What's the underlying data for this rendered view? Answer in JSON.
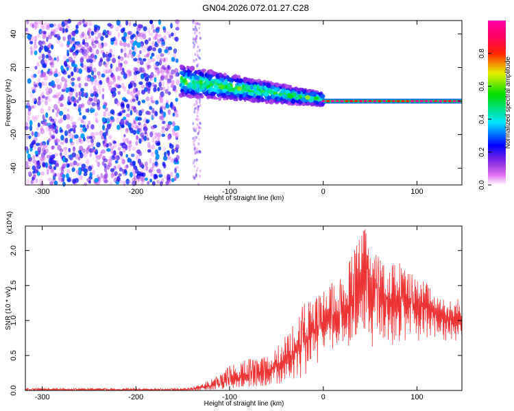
{
  "figure": {
    "title": "GN04.2026.072.01.27.C28"
  },
  "chart_data": [
    {
      "type": "heatmap",
      "title": "GN04.2026.072.01.27.C28",
      "xlabel": "Height of straight line (km)",
      "ylabel": "Frequency (Hz)",
      "xlim": [
        -318,
        148
      ],
      "ylim": [
        -50,
        48
      ],
      "xticks": [
        -300,
        -200,
        -100,
        0,
        100
      ],
      "xtick_labels": [
        "-300",
        "-200",
        "-100",
        "0",
        "100"
      ],
      "yticks": [
        -40,
        -20,
        0,
        20,
        40
      ],
      "ytick_labels": [
        "-40",
        "-20",
        "0",
        "20",
        "40"
      ],
      "colorbar": {
        "label": "Normalized spectral amplitude",
        "range": [
          0,
          1
        ],
        "ticks": [
          0.0,
          0.2,
          0.4,
          0.6,
          0.8
        ],
        "tick_labels": [
          "0.0",
          "0.2",
          "0.4",
          "0.6",
          "0.8"
        ],
        "colormap": "rainbow (white-magenta-blue-cyan-green-yellow-red-magenta)"
      },
      "features": [
        {
          "name": "noise-region",
          "x_range": [
            -318,
            -155
          ],
          "freq_range": [
            -50,
            48
          ],
          "amplitude": [
            0.0,
            0.3
          ]
        },
        {
          "name": "isolated-column",
          "x_center": -135,
          "freq_range": [
            -50,
            48
          ],
          "amplitude": [
            0.0,
            0.2
          ]
        },
        {
          "name": "descending-band",
          "x_range": [
            -152,
            0
          ],
          "freq_start": 12,
          "freq_end": 1,
          "amplitude": [
            0.1,
            0.6
          ]
        },
        {
          "name": "steady-line",
          "x_range": [
            0,
            148
          ],
          "freq": 0,
          "amplitude": [
            0.8,
            1.0
          ]
        }
      ]
    },
    {
      "type": "line",
      "title": "",
      "xlabel": "Height of straight line (km)",
      "ylabel": "SNR (10 * v/v)",
      "y_multiplier": "(x10^4)",
      "xlim": [
        -318,
        148
      ],
      "ylim": [
        0,
        2.35
      ],
      "xticks": [
        -300,
        -200,
        -100,
        0,
        100
      ],
      "xtick_labels": [
        "-300",
        "-200",
        "-100",
        "0",
        "100"
      ],
      "yticks": [
        0,
        0.5,
        1.0,
        1.5,
        2.0
      ],
      "ytick_labels": [
        "0.0",
        "0.5",
        "1.0",
        "1.5",
        "2.0"
      ],
      "color": "#ee3333",
      "series": [
        {
          "name": "SNR",
          "x": [
            -318,
            -300,
            -280,
            -260,
            -240,
            -220,
            -200,
            -180,
            -160,
            -150,
            -140,
            -130,
            -120,
            -110,
            -100,
            -90,
            -80,
            -70,
            -60,
            -50,
            -40,
            -30,
            -20,
            -10,
            0,
            10,
            20,
            30,
            40,
            45,
            50,
            60,
            70,
            80,
            90,
            100,
            110,
            120,
            130,
            140,
            148
          ],
          "y": [
            0.01,
            0.01,
            0.01,
            0.01,
            0.01,
            0.01,
            0.01,
            0.01,
            0.01,
            0.01,
            0.02,
            0.04,
            0.06,
            0.09,
            0.13,
            0.17,
            0.2,
            0.23,
            0.28,
            0.35,
            0.42,
            0.55,
            0.72,
            0.85,
            0.9,
            1.0,
            1.1,
            1.25,
            1.45,
            1.9,
            1.6,
            1.4,
            1.3,
            1.35,
            1.3,
            1.2,
            1.25,
            1.15,
            1.05,
            1.0,
            1.05
          ],
          "upper_envelope": [
            0.03,
            0.03,
            0.03,
            0.03,
            0.03,
            0.03,
            0.03,
            0.03,
            0.03,
            0.03,
            0.05,
            0.1,
            0.15,
            0.22,
            0.35,
            0.4,
            0.45,
            0.42,
            0.5,
            0.6,
            0.8,
            1.0,
            1.25,
            1.3,
            1.4,
            1.55,
            1.6,
            1.9,
            2.2,
            2.35,
            2.0,
            1.9,
            1.75,
            1.85,
            1.7,
            1.6,
            1.55,
            1.4,
            1.35,
            1.25,
            1.4
          ],
          "lower_envelope": [
            0,
            0,
            0,
            0,
            0,
            0,
            0,
            0,
            0,
            0,
            0,
            0,
            0,
            0.01,
            0.02,
            0.03,
            0.04,
            0.05,
            0.07,
            0.08,
            0.1,
            0.15,
            0.2,
            0.35,
            0.45,
            0.55,
            0.6,
            0.65,
            0.75,
            0.85,
            0.6,
            0.65,
            0.6,
            0.7,
            0.7,
            0.7,
            0.7,
            0.75,
            0.7,
            0.7,
            0.75
          ]
        }
      ]
    }
  ]
}
